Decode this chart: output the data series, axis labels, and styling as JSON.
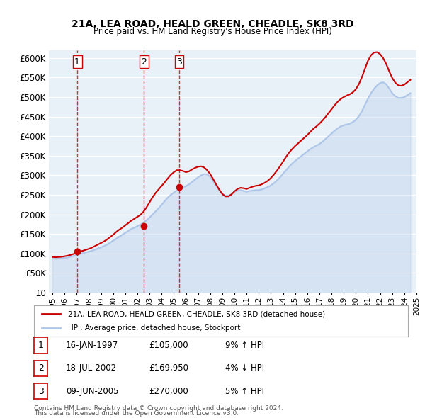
{
  "title": "21A, LEA ROAD, HEALD GREEN, CHEADLE, SK8 3RD",
  "subtitle": "Price paid vs. HM Land Registry's House Price Index (HPI)",
  "hpi_color": "#aec6e8",
  "property_color": "#cc0000",
  "background_color": "#e8f0f8",
  "plot_background": "#f0f4fa",
  "ylim": [
    0,
    620000
  ],
  "yticks": [
    0,
    50000,
    100000,
    150000,
    200000,
    250000,
    300000,
    350000,
    400000,
    450000,
    500000,
    550000,
    600000
  ],
  "sales": [
    {
      "num": 1,
      "date": "16-JAN-1997",
      "price": 105000,
      "pct": "9%",
      "dir": "↑",
      "year": 1997.04
    },
    {
      "num": 2,
      "date": "18-JUL-2002",
      "price": 169950,
      "pct": "4%",
      "dir": "↓",
      "year": 2002.54
    },
    {
      "num": 3,
      "date": "09-JUN-2005",
      "price": 270000,
      "pct": "5%",
      "dir": "↑",
      "year": 2005.44
    }
  ],
  "legend_property": "21A, LEA ROAD, HEALD GREEN, CHEADLE, SK8 3RD (detached house)",
  "legend_hpi": "HPI: Average price, detached house, Stockport",
  "footer1": "Contains HM Land Registry data © Crown copyright and database right 2024.",
  "footer2": "This data is licensed under the Open Government Licence v3.0.",
  "hpi_years": [
    1995.0,
    1995.25,
    1995.5,
    1995.75,
    1996.0,
    1996.25,
    1996.5,
    1996.75,
    1997.0,
    1997.25,
    1997.5,
    1997.75,
    1998.0,
    1998.25,
    1998.5,
    1998.75,
    1999.0,
    1999.25,
    1999.5,
    1999.75,
    2000.0,
    2000.25,
    2000.5,
    2000.75,
    2001.0,
    2001.25,
    2001.5,
    2001.75,
    2002.0,
    2002.25,
    2002.5,
    2002.75,
    2003.0,
    2003.25,
    2003.5,
    2003.75,
    2004.0,
    2004.25,
    2004.5,
    2004.75,
    2005.0,
    2005.25,
    2005.5,
    2005.75,
    2006.0,
    2006.25,
    2006.5,
    2006.75,
    2007.0,
    2007.25,
    2007.5,
    2007.75,
    2008.0,
    2008.25,
    2008.5,
    2008.75,
    2009.0,
    2009.25,
    2009.5,
    2009.75,
    2010.0,
    2010.25,
    2010.5,
    2010.75,
    2011.0,
    2011.25,
    2011.5,
    2011.75,
    2012.0,
    2012.25,
    2012.5,
    2012.75,
    2013.0,
    2013.25,
    2013.5,
    2013.75,
    2014.0,
    2014.25,
    2014.5,
    2014.75,
    2015.0,
    2015.25,
    2015.5,
    2015.75,
    2016.0,
    2016.25,
    2016.5,
    2016.75,
    2017.0,
    2017.25,
    2017.5,
    2017.75,
    2018.0,
    2018.25,
    2018.5,
    2018.75,
    2019.0,
    2019.25,
    2019.5,
    2019.75,
    2020.0,
    2020.25,
    2020.5,
    2020.75,
    2021.0,
    2021.25,
    2021.5,
    2021.75,
    2022.0,
    2022.25,
    2022.5,
    2022.75,
    2023.0,
    2023.25,
    2023.5,
    2023.75,
    2024.0,
    2024.25,
    2024.5
  ],
  "hpi_values": [
    87000,
    86500,
    87000,
    87500,
    89000,
    90000,
    92000,
    94000,
    97000,
    99000,
    101000,
    103000,
    105000,
    107000,
    110000,
    113000,
    116000,
    119000,
    123000,
    128000,
    133000,
    138000,
    143000,
    148000,
    153000,
    158000,
    163000,
    166000,
    170000,
    174000,
    179000,
    185000,
    192000,
    200000,
    208000,
    216000,
    225000,
    234000,
    243000,
    250000,
    256000,
    261000,
    265000,
    268000,
    272000,
    277000,
    283000,
    289000,
    295000,
    300000,
    303000,
    302000,
    296000,
    285000,
    273000,
    262000,
    253000,
    248000,
    248000,
    252000,
    258000,
    261000,
    262000,
    260000,
    258000,
    260000,
    261000,
    262000,
    262000,
    264000,
    267000,
    270000,
    274000,
    280000,
    287000,
    295000,
    304000,
    313000,
    322000,
    330000,
    337000,
    343000,
    349000,
    355000,
    361000,
    367000,
    372000,
    376000,
    380000,
    386000,
    393000,
    400000,
    407000,
    414000,
    420000,
    425000,
    428000,
    430000,
    432000,
    436000,
    442000,
    451000,
    464000,
    480000,
    496000,
    510000,
    521000,
    530000,
    536000,
    538000,
    533000,
    522000,
    510000,
    502000,
    498000,
    498000,
    500000,
    505000,
    510000
  ],
  "prop_years": [
    1995.0,
    1995.25,
    1995.5,
    1995.75,
    1996.0,
    1996.25,
    1996.5,
    1996.75,
    1997.0,
    1997.25,
    1997.5,
    1997.75,
    1998.0,
    1998.25,
    1998.5,
    1998.75,
    1999.0,
    1999.25,
    1999.5,
    1999.75,
    2000.0,
    2000.25,
    2000.5,
    2000.75,
    2001.0,
    2001.25,
    2001.5,
    2001.75,
    2002.0,
    2002.25,
    2002.5,
    2002.75,
    2003.0,
    2003.25,
    2003.5,
    2003.75,
    2004.0,
    2004.25,
    2004.5,
    2004.75,
    2005.0,
    2005.25,
    2005.5,
    2005.75,
    2006.0,
    2006.25,
    2006.5,
    2006.75,
    2007.0,
    2007.25,
    2007.5,
    2007.75,
    2008.0,
    2008.25,
    2008.5,
    2008.75,
    2009.0,
    2009.25,
    2009.5,
    2009.75,
    2010.0,
    2010.25,
    2010.5,
    2010.75,
    2011.0,
    2011.25,
    2011.5,
    2011.75,
    2012.0,
    2012.25,
    2012.5,
    2012.75,
    2013.0,
    2013.25,
    2013.5,
    2013.75,
    2014.0,
    2014.25,
    2014.5,
    2014.75,
    2015.0,
    2015.25,
    2015.5,
    2015.75,
    2016.0,
    2016.25,
    2016.5,
    2016.75,
    2017.0,
    2017.25,
    2017.5,
    2017.75,
    2018.0,
    2018.25,
    2018.5,
    2018.75,
    2019.0,
    2019.25,
    2019.5,
    2019.75,
    2020.0,
    2020.25,
    2020.5,
    2020.75,
    2021.0,
    2021.25,
    2021.5,
    2021.75,
    2022.0,
    2022.25,
    2022.5,
    2022.75,
    2023.0,
    2023.25,
    2023.5,
    2023.75,
    2024.0,
    2024.25,
    2024.5
  ],
  "prop_values": [
    91000,
    90500,
    91000,
    91500,
    93000,
    94500,
    96500,
    99000,
    103000,
    105000,
    107000,
    109500,
    112000,
    115000,
    119000,
    123000,
    127000,
    131000,
    136000,
    142000,
    148000,
    155000,
    161000,
    166000,
    172000,
    178000,
    184000,
    189000,
    194000,
    199000,
    207000,
    218000,
    231000,
    244000,
    255000,
    264000,
    273000,
    282000,
    292000,
    301000,
    308000,
    313000,
    313000,
    311000,
    308000,
    310000,
    315000,
    319000,
    322000,
    323000,
    320000,
    313000,
    303000,
    290000,
    276000,
    263000,
    252000,
    246000,
    246000,
    251000,
    259000,
    265000,
    268000,
    267000,
    265000,
    268000,
    271000,
    273000,
    274000,
    277000,
    281000,
    286000,
    293000,
    302000,
    312000,
    323000,
    335000,
    347000,
    358000,
    367000,
    375000,
    382000,
    389000,
    396000,
    403000,
    411000,
    419000,
    425000,
    432000,
    440000,
    449000,
    459000,
    469000,
    479000,
    488000,
    495000,
    500000,
    504000,
    507000,
    512000,
    520000,
    533000,
    551000,
    572000,
    593000,
    607000,
    614000,
    615000,
    610000,
    600000,
    585000,
    566000,
    549000,
    537000,
    530000,
    529000,
    532000,
    538000,
    544000
  ]
}
